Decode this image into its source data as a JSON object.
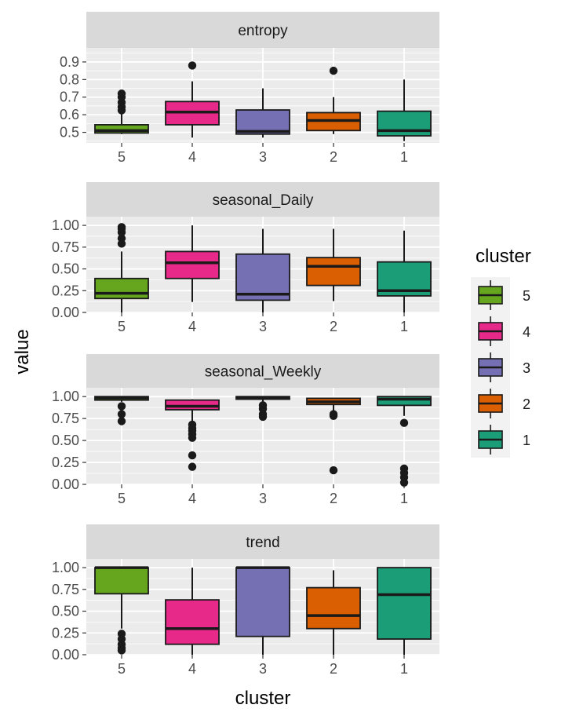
{
  "chart_data": {
    "type": "boxplot",
    "xlabel": "cluster",
    "ylabel": "value",
    "categories": [
      "5",
      "4",
      "3",
      "2",
      "1"
    ],
    "colors": {
      "5": "#66A61E",
      "4": "#E7298A",
      "3": "#7570B3",
      "2": "#D95F02",
      "1": "#1B9E77"
    },
    "legend": {
      "title": "cluster",
      "placement": "right",
      "entries": [
        "5",
        "4",
        "3",
        "2",
        "1"
      ]
    },
    "grid": true,
    "facets": [
      {
        "name": "entropy",
        "ylim": [
          0.44,
          0.98
        ],
        "yticks": [
          0.5,
          0.6,
          0.7,
          0.8,
          0.9
        ],
        "ytick_labels": [
          "0.5",
          "0.6",
          "0.7",
          "0.8",
          "0.9"
        ],
        "boxes": [
          {
            "cluster": "5",
            "min": 0.49,
            "q1": 0.496,
            "median": 0.51,
            "q3": 0.543,
            "max": 0.61,
            "outliers": [
              0.625,
              0.645,
              0.67,
              0.7,
              0.72
            ]
          },
          {
            "cluster": "4",
            "min": 0.47,
            "q1": 0.543,
            "median": 0.615,
            "q3": 0.675,
            "max": 0.79,
            "outliers": [
              0.88
            ]
          },
          {
            "cluster": "3",
            "min": 0.47,
            "q1": 0.49,
            "median": 0.505,
            "q3": 0.627,
            "max": 0.75,
            "outliers": []
          },
          {
            "cluster": "2",
            "min": 0.49,
            "q1": 0.51,
            "median": 0.567,
            "q3": 0.612,
            "max": 0.7,
            "outliers": [
              0.85
            ]
          },
          {
            "cluster": "1",
            "min": 0.45,
            "q1": 0.48,
            "median": 0.51,
            "q3": 0.62,
            "max": 0.8,
            "outliers": []
          }
        ]
      },
      {
        "name": "seasonal_Daily",
        "ylim": [
          0,
          1.1
        ],
        "yticks": [
          0,
          0.25,
          0.5,
          0.75,
          1.0
        ],
        "ytick_labels": [
          "0.00",
          "0.25",
          "0.50",
          "0.75",
          "1.00"
        ],
        "boxes": [
          {
            "cluster": "5",
            "min": 0.0,
            "q1": 0.16,
            "median": 0.22,
            "q3": 0.39,
            "max": 0.7,
            "outliers": [
              0.79,
              0.85,
              0.92,
              0.96,
              0.98
            ]
          },
          {
            "cluster": "4",
            "min": 0.12,
            "q1": 0.39,
            "median": 0.57,
            "q3": 0.7,
            "max": 1.0,
            "outliers": []
          },
          {
            "cluster": "3",
            "min": 0.0,
            "q1": 0.14,
            "median": 0.21,
            "q3": 0.67,
            "max": 0.96,
            "outliers": []
          },
          {
            "cluster": "2",
            "min": 0.13,
            "q1": 0.31,
            "median": 0.53,
            "q3": 0.63,
            "max": 0.96,
            "outliers": []
          },
          {
            "cluster": "1",
            "min": 0.0,
            "q1": 0.19,
            "median": 0.25,
            "q3": 0.58,
            "max": 0.94,
            "outliers": []
          }
        ]
      },
      {
        "name": "seasonal_Weekly",
        "ylim": [
          0,
          1.1
        ],
        "yticks": [
          0,
          0.25,
          0.5,
          0.75,
          1.0
        ],
        "ytick_labels": [
          "0.00",
          "0.25",
          "0.50",
          "0.75",
          "1.00"
        ],
        "boxes": [
          {
            "cluster": "5",
            "min": 0.94,
            "q1": 0.96,
            "median": 0.985,
            "q3": 1.0,
            "max": 1.0,
            "outliers": [
              0.72,
              0.8,
              0.89
            ]
          },
          {
            "cluster": "4",
            "min": 0.7,
            "q1": 0.85,
            "median": 0.89,
            "q3": 0.96,
            "max": 0.97,
            "outliers": [
              0.2,
              0.33,
              0.53,
              0.57,
              0.61,
              0.64,
              0.68
            ]
          },
          {
            "cluster": "3",
            "min": 0.94,
            "q1": 0.97,
            "median": 0.99,
            "q3": 1.0,
            "max": 1.0,
            "outliers": [
              0.77,
              0.8,
              0.86,
              0.9
            ]
          },
          {
            "cluster": "2",
            "min": 0.84,
            "q1": 0.91,
            "median": 0.94,
            "q3": 0.98,
            "max": 0.98,
            "outliers": [
              0.16,
              0.78,
              0.8
            ]
          },
          {
            "cluster": "1",
            "min": 0.78,
            "q1": 0.9,
            "median": 0.97,
            "q3": 1.0,
            "max": 1.0,
            "outliers": [
              0.02,
              0.08,
              0.13,
              0.18,
              0.7
            ]
          }
        ]
      },
      {
        "name": "trend",
        "ylim": [
          0,
          1.1
        ],
        "yticks": [
          0,
          0.25,
          0.5,
          0.75,
          1.0
        ],
        "ytick_labels": [
          "0.00",
          "0.25",
          "0.50",
          "0.75",
          "1.00"
        ],
        "boxes": [
          {
            "cluster": "5",
            "min": 0.3,
            "q1": 0.7,
            "median": 1.0,
            "q3": 1.0,
            "max": 1.0,
            "outliers": [
              0.05,
              0.08,
              0.12,
              0.18,
              0.24
            ]
          },
          {
            "cluster": "4",
            "min": 0.0,
            "q1": 0.12,
            "median": 0.3,
            "q3": 0.63,
            "max": 1.0,
            "outliers": []
          },
          {
            "cluster": "3",
            "min": 0.0,
            "q1": 0.21,
            "median": 1.0,
            "q3": 1.0,
            "max": 1.0,
            "outliers": []
          },
          {
            "cluster": "2",
            "min": 0.0,
            "q1": 0.3,
            "median": 0.45,
            "q3": 0.77,
            "max": 0.97,
            "outliers": []
          },
          {
            "cluster": "1",
            "min": 0.0,
            "q1": 0.18,
            "median": 0.69,
            "q3": 1.0,
            "max": 1.0,
            "outliers": []
          }
        ]
      }
    ]
  }
}
